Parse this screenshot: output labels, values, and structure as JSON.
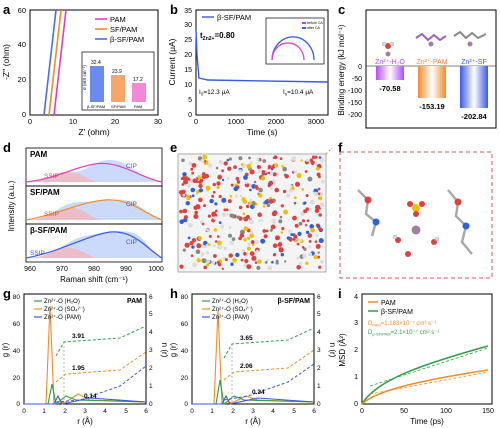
{
  "labels": {
    "a": "a",
    "b": "b",
    "c": "c",
    "d": "d",
    "e": "e",
    "f": "f",
    "g": "g",
    "h": "h",
    "i": "i"
  },
  "colors": {
    "pam": "#f28c28",
    "sf": "#f2a030",
    "bsf": "#4a6fe0",
    "green": "#2f9e44",
    "pink": "#e040c0",
    "purple": "#a040e0",
    "blue": "#3a5ae8",
    "red": "#e05050"
  },
  "panel_a": {
    "xlabel": "Z' (ohm)",
    "ylabel": "-Z'' (ohm)",
    "xticks": [
      "0",
      "10",
      "20",
      "30"
    ],
    "yticks": [
      "0",
      "20",
      "40",
      "60"
    ],
    "legend": [
      "PAM",
      "SF/PAM",
      "β-SF/PAM"
    ],
    "inset": {
      "ylabel": "σ (mS cm⁻¹)",
      "values": [
        "32.4",
        "23.9",
        "17.2"
      ],
      "cats": [
        "β-SF/PAM",
        "SF/PAM",
        "PAM"
      ]
    }
  },
  "panel_b": {
    "legend": "β-SF/PAM",
    "tzn": "t",
    "tzn_sub": "Zn2+",
    "tzn_val": "=0.80",
    "ylabel": "Current (μA)",
    "xlabel": "Time (s)",
    "xticks": [
      "0",
      "1000",
      "2000",
      "3000"
    ],
    "yticks": [
      "0",
      "5",
      "10",
      "15",
      "20",
      "25",
      "30",
      "35"
    ],
    "i0": "I",
    "i0_sub": "0",
    "i0_val": "=12.3 μA",
    "is": "I",
    "is_sub": "s",
    "is_val": "=10.4 μA",
    "inset_legend": [
      "before CA",
      "after CA"
    ]
  },
  "panel_c": {
    "ylabel": "Binding energy (kJ mol⁻¹)",
    "yticks": [
      "0",
      "-50",
      "-100",
      "-150",
      "-200"
    ],
    "bars": [
      {
        "label": "Zn²⁺-H₂O",
        "value": "-70.58"
      },
      {
        "label": "Zn²⁺-PAM",
        "value": "-153.19"
      },
      {
        "label": "Zn²⁺-SF",
        "value": "-202.84"
      }
    ]
  },
  "panel_d": {
    "xlabel": "Raman shift (cm⁻¹)",
    "ylabel": "Intensity (a.u.)",
    "xticks": [
      "960",
      "970",
      "980",
      "990",
      "1000"
    ],
    "rows": [
      {
        "name": "PAM",
        "ssip": "SSIP",
        "cip": "CIP"
      },
      {
        "name": "SF/PAM",
        "ssip": "SSIP",
        "cip": "CIP"
      },
      {
        "name": "β-SF/PAM",
        "ssip": "SSIP",
        "cip": "CIP"
      }
    ]
  },
  "panel_g": {
    "title": "PAM",
    "xlabel": "r (Å)",
    "ylabel": "g (r)",
    "y2label": "n (r)",
    "legend": [
      "Zn²⁺-O (H₂O)",
      "Zn²⁺-O (SO₄²⁻)",
      "Zn²⁺-O (PAM)"
    ],
    "values": [
      "3.91",
      "1.95",
      "0.14"
    ],
    "xticks": [
      "0",
      "1",
      "2",
      "3",
      "4",
      "5",
      "6"
    ],
    "yticks": [
      "0",
      "20",
      "40",
      "60",
      "80"
    ],
    "y2ticks": [
      "0",
      "1",
      "2",
      "3",
      "4",
      "5",
      "6"
    ]
  },
  "panel_h": {
    "title": "β-SF/PAM",
    "xlabel": "r (Å)",
    "ylabel": "g (r)",
    "y2label": "n (r)",
    "legend": [
      "Zn²⁺-O (H₂O)",
      "Zn²⁺-O (SO₄²⁻)",
      "Zn²⁺-O (PAM)"
    ],
    "values": [
      "3.65",
      "2.06",
      "0.34"
    ],
    "xticks": [
      "0",
      "1",
      "2",
      "3",
      "4",
      "5",
      "6"
    ],
    "yticks": [
      "0",
      "20",
      "40",
      "60",
      "80"
    ],
    "y2ticks": [
      "0",
      "1",
      "2",
      "3",
      "4",
      "5",
      "6"
    ]
  },
  "panel_i": {
    "xlabel": "Time (ps)",
    "ylabel": "MSD (Å²)",
    "xticks": [
      "0",
      "50",
      "100",
      "150"
    ],
    "yticks": [
      "0",
      "1",
      "2",
      "3",
      "4"
    ],
    "legend": [
      "PAM",
      "β-SF/PAM"
    ],
    "d_pam": "D",
    "d_pam_sub": "PAM",
    "d_pam_val": "=1.183×10⁻⁷ cm² s⁻¹",
    "d_bsf": "D",
    "d_bsf_sub": "β-SF/PAM",
    "d_bsf_val": "=2.1×10⁻⁷ cm² s⁻¹"
  }
}
